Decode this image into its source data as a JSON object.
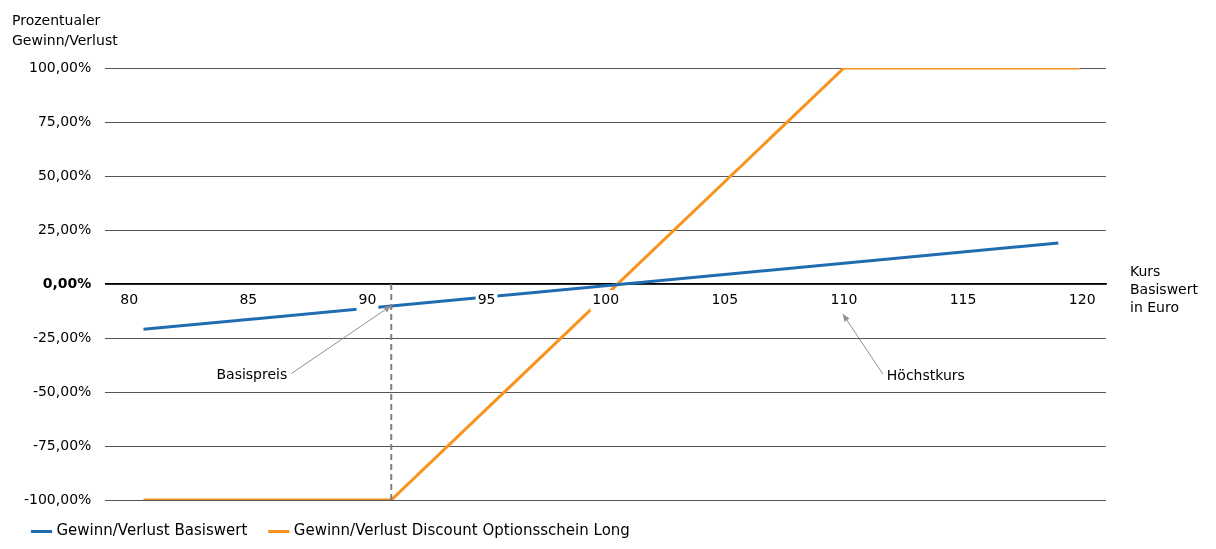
{
  "chart_data": {
    "type": "line",
    "ylabel": "Prozentualer Gewinn/Verlust",
    "xlabel": "Kurs Basiswert in Euro",
    "xlim": [
      79,
      121
    ],
    "xticks": [
      80,
      85,
      90,
      95,
      100,
      105,
      110,
      115,
      120
    ],
    "ylim": [
      -100,
      100
    ],
    "yticks": [
      {
        "value": -100,
        "label": "-100,00%"
      },
      {
        "value": -75,
        "label": "-75,00%"
      },
      {
        "value": -50,
        "label": "-50,00%"
      },
      {
        "value": -25,
        "label": "-25,00%"
      },
      {
        "value": 0,
        "label": "0,00%"
      },
      {
        "value": 25,
        "label": "25,00%"
      },
      {
        "value": 50,
        "label": "50,00%"
      },
      {
        "value": 75,
        "label": "75,00%"
      },
      {
        "value": 100,
        "label": "100,00%"
      }
    ],
    "series": [
      {
        "name": "Gewinn/Verlust Basiswert",
        "color": "#1f6cb0",
        "x": [
          80.6,
          119
        ],
        "values": [
          -21,
          19
        ]
      },
      {
        "name": "Gewinn/Verlust Discount Optionsschein Long",
        "color": "#f7941d",
        "x": [
          80.6,
          91,
          110,
          119.9
        ],
        "values": [
          -100,
          -100,
          100,
          100
        ]
      }
    ],
    "ref_lines": [
      {
        "axis": "x",
        "value": 91,
        "color": "#808080",
        "line_style": "dashed"
      }
    ],
    "annotations": [
      {
        "text": "Basispreis",
        "x": 91,
        "y": -10
      },
      "Höchstkurs"
    ],
    "grid": "y",
    "legend": "bottom left",
    "marker": "none",
    "line_style": "solid"
  }
}
